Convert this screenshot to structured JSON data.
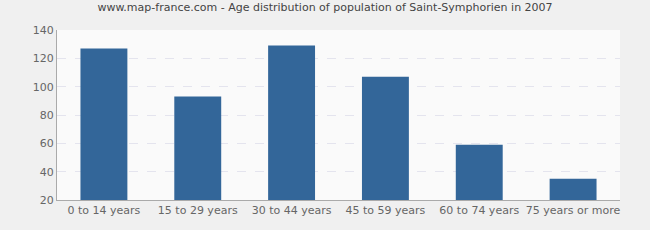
{
  "chart_data": {
    "type": "bar",
    "title": "www.map-france.com - Age distribution of population of Saint-Symphorien in 2007",
    "categories": [
      "0 to 14 years",
      "15 to 29 years",
      "30 to 44 years",
      "45 to 59 years",
      "60 to 74 years",
      "75 years or more"
    ],
    "values": [
      127,
      93,
      129,
      107,
      59,
      35
    ],
    "color": "#336699",
    "ylim": [
      20,
      140
    ],
    "yticks": [
      20,
      40,
      60,
      80,
      100,
      120,
      140
    ],
    "grid": true
  }
}
